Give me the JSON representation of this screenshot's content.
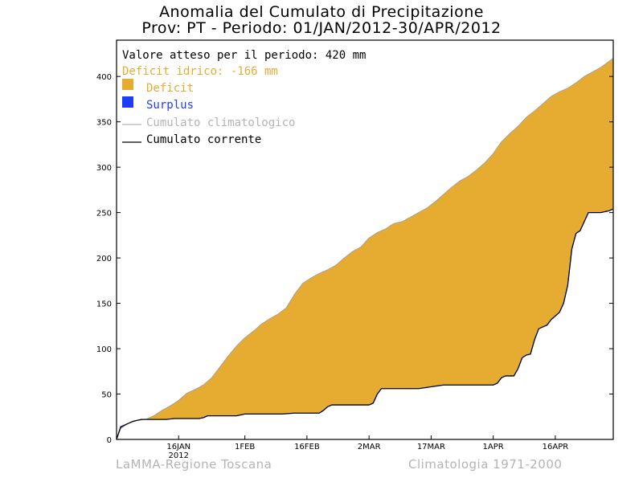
{
  "header": {
    "title_line1": "Anomalia del Cumulato di Precipitazione",
    "title_line2": "Prov: PT - Periodo: 01/JAN/2012-30/APR/2012"
  },
  "legend": {
    "expected": "Valore atteso per il periodo: 420 mm",
    "deficit_text": "Deficit idrico: -166 mm",
    "deficit": "Deficit",
    "surplus": "Surplus",
    "climatological": "Cumulato climatologico",
    "current": "Cumulato corrente"
  },
  "footer": {
    "left": "LaMMA-Regione Toscana",
    "right": "Climatologia 1971-2000"
  },
  "colors": {
    "deficit": "#e6ac32",
    "surplus": "#1e3cff",
    "deficit_text": "#e6ac32",
    "surplus_text": "#1e3cff",
    "climatological_line": "#a0a0a0",
    "current_line": "#000000"
  },
  "chart_data": {
    "type": "area",
    "title": "Anomalia del Cumulato di Precipitazione",
    "subtitle": "Prov: PT - Periodo: 01/JAN/2012-30/APR/2012",
    "xlabel": "",
    "ylabel": "",
    "xlim": [
      1,
      121
    ],
    "ylim": [
      0,
      440
    ],
    "yticks": [
      0,
      50,
      100,
      150,
      200,
      250,
      300,
      350,
      400
    ],
    "xticks": [
      {
        "day": 16,
        "label": "16JAN",
        "sublabel": "2012"
      },
      {
        "day": 32,
        "label": "1FEB"
      },
      {
        "day": 47,
        "label": "16FEB"
      },
      {
        "day": 62,
        "label": "2MAR"
      },
      {
        "day": 77,
        "label": "17MAR"
      },
      {
        "day": 92,
        "label": "1APR"
      },
      {
        "day": 107,
        "label": "16APR"
      }
    ],
    "grid": false,
    "legend_position": "top-left",
    "series": [
      {
        "name": "Cumulato climatologico",
        "points": [
          [
            1,
            0
          ],
          [
            2,
            12
          ],
          [
            4,
            18
          ],
          [
            6,
            21
          ],
          [
            8,
            22
          ],
          [
            10,
            26
          ],
          [
            12,
            32
          ],
          [
            14,
            37
          ],
          [
            16,
            43
          ],
          [
            18,
            51
          ],
          [
            20,
            55
          ],
          [
            22,
            60
          ],
          [
            24,
            68
          ],
          [
            26,
            80
          ],
          [
            28,
            92
          ],
          [
            30,
            103
          ],
          [
            32,
            112
          ],
          [
            34,
            119
          ],
          [
            36,
            127
          ],
          [
            38,
            133
          ],
          [
            40,
            138
          ],
          [
            42,
            145
          ],
          [
            44,
            160
          ],
          [
            46,
            172
          ],
          [
            48,
            178
          ],
          [
            50,
            183
          ],
          [
            52,
            187
          ],
          [
            54,
            192
          ],
          [
            56,
            200
          ],
          [
            58,
            207
          ],
          [
            60,
            212
          ],
          [
            62,
            222
          ],
          [
            64,
            228
          ],
          [
            66,
            232
          ],
          [
            68,
            238
          ],
          [
            70,
            240
          ],
          [
            72,
            245
          ],
          [
            74,
            250
          ],
          [
            76,
            255
          ],
          [
            78,
            262
          ],
          [
            80,
            270
          ],
          [
            82,
            278
          ],
          [
            84,
            285
          ],
          [
            86,
            290
          ],
          [
            88,
            297
          ],
          [
            90,
            305
          ],
          [
            92,
            315
          ],
          [
            94,
            328
          ],
          [
            96,
            337
          ],
          [
            98,
            345
          ],
          [
            100,
            355
          ],
          [
            102,
            362
          ],
          [
            104,
            370
          ],
          [
            106,
            378
          ],
          [
            108,
            383
          ],
          [
            110,
            387
          ],
          [
            112,
            393
          ],
          [
            114,
            400
          ],
          [
            116,
            405
          ],
          [
            118,
            410
          ],
          [
            121,
            420
          ]
        ]
      },
      {
        "name": "Cumulato corrente",
        "points": [
          [
            1,
            0
          ],
          [
            2,
            14
          ],
          [
            4,
            18
          ],
          [
            5,
            20
          ],
          [
            7,
            22
          ],
          [
            9,
            22
          ],
          [
            11,
            22
          ],
          [
            13,
            22
          ],
          [
            15,
            23
          ],
          [
            17,
            23
          ],
          [
            19,
            23
          ],
          [
            21,
            23
          ],
          [
            22,
            24
          ],
          [
            23,
            26
          ],
          [
            25,
            26
          ],
          [
            28,
            26
          ],
          [
            30,
            26
          ],
          [
            32,
            28
          ],
          [
            35,
            28
          ],
          [
            38,
            28
          ],
          [
            41,
            28
          ],
          [
            44,
            29
          ],
          [
            47,
            29
          ],
          [
            50,
            29
          ],
          [
            51,
            32
          ],
          [
            52,
            36
          ],
          [
            53,
            38
          ],
          [
            56,
            38
          ],
          [
            59,
            38
          ],
          [
            62,
            38
          ],
          [
            63,
            40
          ],
          [
            64,
            50
          ],
          [
            65,
            56
          ],
          [
            67,
            56
          ],
          [
            70,
            56
          ],
          [
            74,
            56
          ],
          [
            77,
            58
          ],
          [
            80,
            60
          ],
          [
            83,
            60
          ],
          [
            86,
            60
          ],
          [
            89,
            60
          ],
          [
            92,
            60
          ],
          [
            93,
            62
          ],
          [
            94,
            68
          ],
          [
            95,
            70
          ],
          [
            97,
            70
          ],
          [
            98,
            78
          ],
          [
            99,
            90
          ],
          [
            100,
            93
          ],
          [
            101,
            94
          ],
          [
            102,
            110
          ],
          [
            103,
            122
          ],
          [
            104,
            124
          ],
          [
            105,
            126
          ],
          [
            106,
            132
          ],
          [
            107,
            136
          ],
          [
            108,
            140
          ],
          [
            109,
            150
          ],
          [
            110,
            170
          ],
          [
            111,
            210
          ],
          [
            112,
            227
          ],
          [
            113,
            230
          ],
          [
            114,
            240
          ],
          [
            115,
            250
          ],
          [
            116,
            250
          ],
          [
            118,
            250
          ],
          [
            120,
            252
          ],
          [
            121,
            254
          ]
        ]
      }
    ],
    "summary": {
      "expected_mm": 420,
      "deficit_mm": -166
    }
  }
}
